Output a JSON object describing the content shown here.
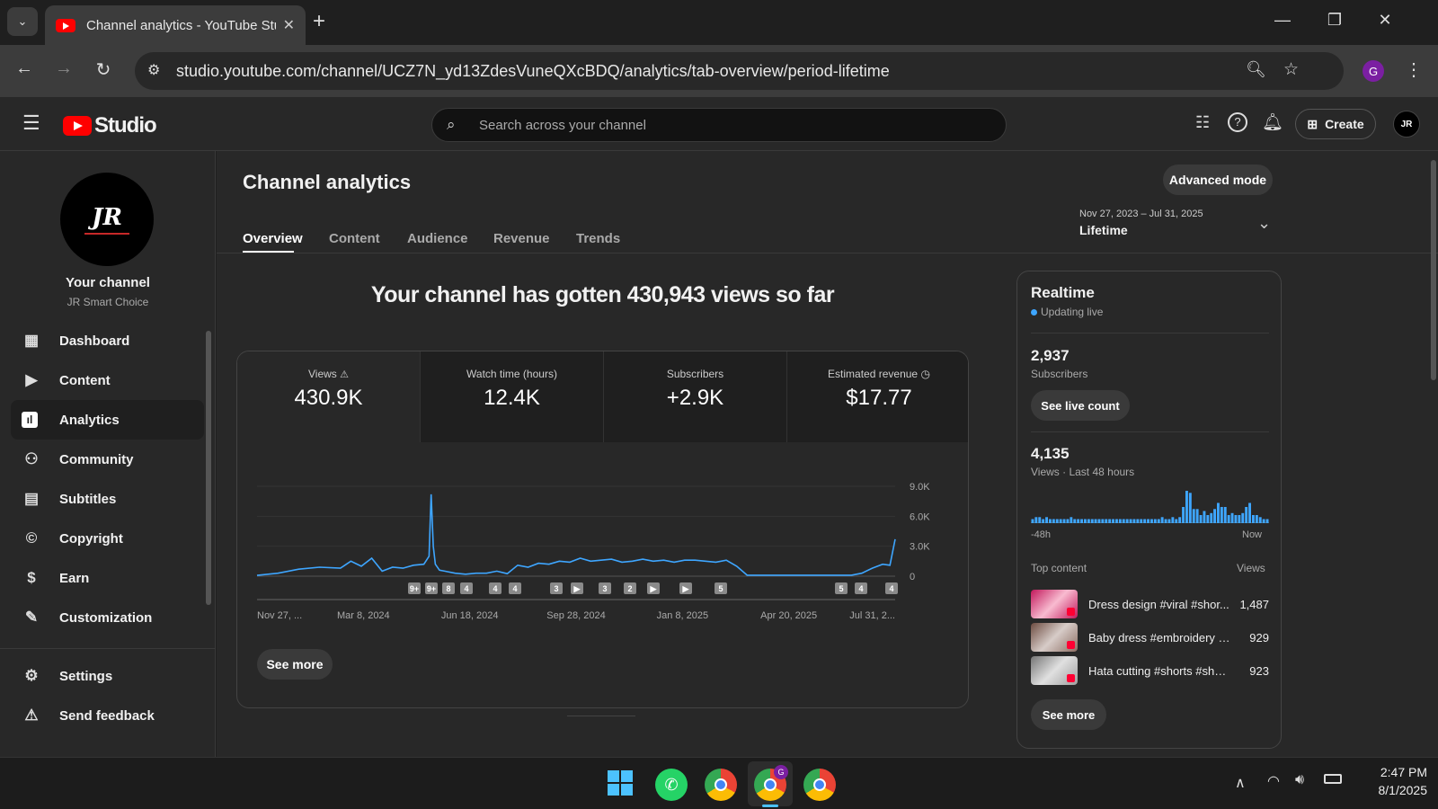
{
  "browser": {
    "tab_title": "Channel analytics - YouTube Stu",
    "url": "studio.youtube.com/channel/UCZ7N_yd13ZdesVuneQXcBDQ/analytics/tab-overview/period-lifetime",
    "profile_initial": "G"
  },
  "studio": {
    "logo_text": "Studio",
    "search_placeholder": "Search across your channel",
    "create_label": "Create"
  },
  "sidebar": {
    "channel_label": "Your channel",
    "channel_name": "JR Smart Choice",
    "items": [
      {
        "label": "Dashboard"
      },
      {
        "label": "Content"
      },
      {
        "label": "Analytics"
      },
      {
        "label": "Community"
      },
      {
        "label": "Subtitles"
      },
      {
        "label": "Copyright"
      },
      {
        "label": "Earn"
      },
      {
        "label": "Customization"
      }
    ],
    "bottom_items": [
      {
        "label": "Settings"
      },
      {
        "label": "Send feedback"
      }
    ]
  },
  "main": {
    "title": "Channel analytics",
    "advanced_mode": "Advanced mode",
    "tabs": [
      "Overview",
      "Content",
      "Audience",
      "Revenue",
      "Trends"
    ],
    "date_range": "Nov 27, 2023 – Jul 31, 2025",
    "period": "Lifetime",
    "headline": "Your channel has gotten 430,943 views so far",
    "metrics": [
      {
        "label": "Views",
        "value": "430.9K"
      },
      {
        "label": "Watch time (hours)",
        "value": "12.4K"
      },
      {
        "label": "Subscribers",
        "value": "+2.9K"
      },
      {
        "label": "Estimated revenue",
        "value": "$17.77"
      }
    ],
    "see_more": "See more"
  },
  "chart_data": {
    "type": "line",
    "title": "",
    "xlabel": "",
    "ylabel": "",
    "x_tick_labels": [
      "Nov 27, ...",
      "Mar 8, 2024",
      "Jun 18, 2024",
      "Sep 28, 2024",
      "Jan 8, 2025",
      "Apr 20, 2025",
      "Jul 31, 2..."
    ],
    "y_tick_labels": [
      "9.0K",
      "6.0K",
      "3.0K",
      "0"
    ],
    "ylim": [
      0,
      9000
    ],
    "grid": true,
    "color": "#3ea6ff",
    "series": [
      {
        "x": [
          "2023-11-27",
          "2023-12-17",
          "2024-01-06",
          "2024-01-26",
          "2024-02-15",
          "2024-02-25",
          "2024-03-06",
          "2024-03-16",
          "2024-03-26",
          "2024-04-05",
          "2024-04-15",
          "2024-04-25",
          "2024-05-05",
          "2024-05-10",
          "2024-05-12",
          "2024-05-14",
          "2024-05-16",
          "2024-05-20",
          "2024-05-25",
          "2024-06-04",
          "2024-06-14",
          "2024-06-24",
          "2024-07-04",
          "2024-07-14",
          "2024-07-24",
          "2024-08-03",
          "2024-08-13",
          "2024-08-23",
          "2024-09-02",
          "2024-09-12",
          "2024-09-22",
          "2024-10-02",
          "2024-10-12",
          "2024-10-22",
          "2024-11-01",
          "2024-11-11",
          "2024-11-21",
          "2024-12-01",
          "2024-12-11",
          "2024-12-21",
          "2024-12-31",
          "2025-01-10",
          "2025-01-20",
          "2025-01-30",
          "2025-02-09",
          "2025-02-19",
          "2025-03-01",
          "2025-03-11",
          "2025-03-21",
          "2025-03-31",
          "2025-04-10",
          "2025-04-20",
          "2025-04-30",
          "2025-05-10",
          "2025-05-20",
          "2025-05-30",
          "2025-06-09",
          "2025-06-19",
          "2025-06-29",
          "2025-07-09",
          "2025-07-19",
          "2025-07-26",
          "2025-07-31"
        ],
        "values": [
          80,
          300,
          700,
          900,
          800,
          1500,
          1000,
          1800,
          500,
          900,
          800,
          1100,
          1200,
          2000,
          8200,
          3000,
          1200,
          600,
          500,
          300,
          200,
          300,
          300,
          500,
          250,
          1100,
          900,
          1300,
          1200,
          1500,
          1400,
          1800,
          1500,
          1600,
          1700,
          1400,
          1500,
          1700,
          1500,
          1600,
          1400,
          1600,
          1600,
          1500,
          1400,
          1600,
          1000,
          100,
          100,
          100,
          100,
          100,
          100,
          100,
          100,
          100,
          100,
          100,
          300,
          800,
          1200,
          1100,
          3700
        ]
      }
    ],
    "annotations": [
      "9+",
      "9+",
      "8",
      "4",
      "4",
      "4",
      "3",
      "▶",
      "3",
      "2",
      "▶",
      "▶",
      "5",
      "5",
      "4",
      "4"
    ]
  },
  "realtime": {
    "title": "Realtime",
    "status": "Updating live",
    "subscribers_value": "2,937",
    "subscribers_label": "Subscribers",
    "see_live_count": "See live count",
    "views_value": "4,135",
    "views_label": "Views · Last 48 hours",
    "axis_left": "-48h",
    "axis_right": "Now",
    "top_content_label": "Top content",
    "views_col": "Views",
    "top_content": [
      {
        "title": "Dress design #viral #shor...",
        "views": "1,487",
        "color": "#c2185b"
      },
      {
        "title": "Baby dress #embroidery #...",
        "views": "929",
        "color": "#8d6e63"
      },
      {
        "title": "Hata cutting #shorts #shor...",
        "views": "923",
        "color": "#9e9e9e"
      }
    ],
    "bars": [
      2,
      3,
      3,
      2,
      3,
      2,
      2,
      2,
      2,
      2,
      2,
      3,
      2,
      2,
      2,
      2,
      2,
      2,
      2,
      2,
      2,
      2,
      2,
      2,
      2,
      2,
      2,
      2,
      2,
      2,
      2,
      2,
      2,
      2,
      2,
      2,
      2,
      3,
      2,
      2,
      3,
      2,
      3,
      8,
      16,
      15,
      7,
      7,
      4,
      6,
      4,
      5,
      7,
      10,
      8,
      8,
      4,
      5,
      4,
      4,
      5,
      8,
      10,
      4,
      4,
      3,
      2,
      2
    ]
  },
  "taskbar": {
    "time": "2:47 PM",
    "date": "8/1/2025"
  }
}
